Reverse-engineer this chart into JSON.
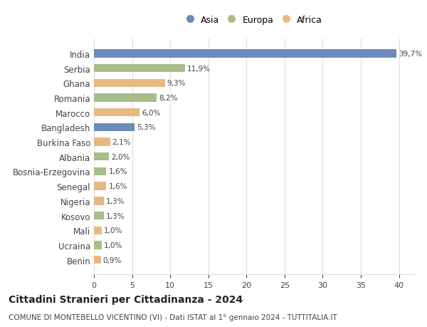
{
  "countries": [
    "India",
    "Serbia",
    "Ghana",
    "Romania",
    "Marocco",
    "Bangladesh",
    "Burkina Faso",
    "Albania",
    "Bosnia-Erzegovina",
    "Senegal",
    "Nigeria",
    "Kosovo",
    "Mali",
    "Ucraina",
    "Benin"
  ],
  "values": [
    39.7,
    11.9,
    9.3,
    8.2,
    6.0,
    5.3,
    2.1,
    2.0,
    1.6,
    1.6,
    1.3,
    1.3,
    1.0,
    1.0,
    0.9
  ],
  "labels": [
    "39,7%",
    "11,9%",
    "9,3%",
    "8,2%",
    "6,0%",
    "5,3%",
    "2,1%",
    "2,0%",
    "1,6%",
    "1,6%",
    "1,3%",
    "1,3%",
    "1,0%",
    "1,0%",
    "0,9%"
  ],
  "continents": [
    "Asia",
    "Europa",
    "Africa",
    "Europa",
    "Africa",
    "Asia",
    "Africa",
    "Europa",
    "Europa",
    "Africa",
    "Africa",
    "Europa",
    "Africa",
    "Europa",
    "Africa"
  ],
  "colors": {
    "Asia": "#6b8cba",
    "Europa": "#a8bd8a",
    "Africa": "#e8b882"
  },
  "xlim": [
    0,
    42
  ],
  "xticks": [
    0,
    5,
    10,
    15,
    20,
    25,
    30,
    35,
    40
  ],
  "title": "Cittadini Stranieri per Cittadinanza - 2024",
  "subtitle": "COMUNE DI MONTEBELLO VICENTINO (VI) - Dati ISTAT al 1° gennaio 2024 - TUTTITALIA.IT",
  "background_color": "#ffffff",
  "grid_color": "#dddddd",
  "bar_height": 0.55,
  "legend_items": [
    "Asia",
    "Europa",
    "Africa"
  ]
}
